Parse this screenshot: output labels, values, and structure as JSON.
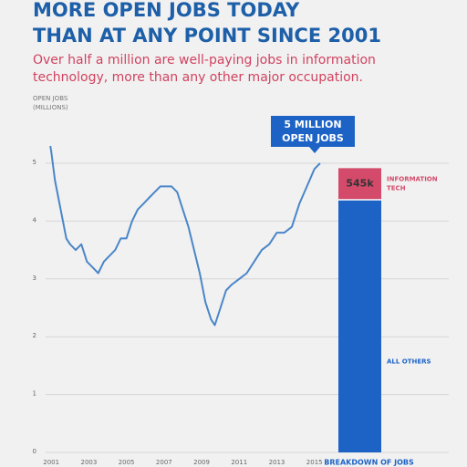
{
  "chart_data": {
    "type": "line",
    "title": [
      "MORE OPEN JOBS TODAY",
      "THAN AT ANY POINT SINCE 2001"
    ],
    "subtitle": [
      "Over half a million are well-paying jobs in information",
      "technology, more than any other major occupation."
    ],
    "y_label": [
      "OPEN JOBS",
      "(MILLIONS)"
    ],
    "annotation": [
      "5 MILLION",
      "OPEN JOBS"
    ],
    "x": [
      2000.95,
      2001.0,
      2001.2,
      2001.5,
      2001.8,
      2002.0,
      2002.3,
      2002.6,
      2002.9,
      2003.2,
      2003.5,
      2003.8,
      2004.1,
      2004.4,
      2004.7,
      2005.0,
      2005.3,
      2005.6,
      2005.9,
      2006.2,
      2006.5,
      2006.8,
      2007.1,
      2007.4,
      2007.7,
      2008.0,
      2008.3,
      2008.6,
      2008.9,
      2009.2,
      2009.5,
      2009.7,
      2010.0,
      2010.3,
      2010.6,
      2011.0,
      2011.4,
      2011.8,
      2012.2,
      2012.6,
      2013.0,
      2013.4,
      2013.8,
      2014.2,
      2014.6,
      2015.0,
      2015.3
    ],
    "series": [
      {
        "name": "Open jobs",
        "color": "#4a86c8",
        "values": [
          5.3,
          5.2,
          4.7,
          4.2,
          3.7,
          3.6,
          3.5,
          3.6,
          3.3,
          3.2,
          3.1,
          3.3,
          3.4,
          3.5,
          3.7,
          3.7,
          4.0,
          4.2,
          4.3,
          4.4,
          4.5,
          4.6,
          4.6,
          4.6,
          4.5,
          4.2,
          3.9,
          3.5,
          3.1,
          2.6,
          2.3,
          2.2,
          2.5,
          2.8,
          2.9,
          3.0,
          3.1,
          3.3,
          3.5,
          3.6,
          3.8,
          3.8,
          3.9,
          4.3,
          4.6,
          4.9,
          5.0
        ]
      }
    ],
    "xlim": [
      2000.7,
      2015.5
    ],
    "xticks": [
      2001,
      2003,
      2005,
      2007,
      2009,
      2011,
      2013,
      2015
    ],
    "ylim": [
      0,
      5.2
    ],
    "yticks": [
      0,
      1,
      2,
      3,
      4,
      5
    ],
    "grid": true,
    "breakdown": {
      "label": "BREAKDOWN OF JOBS",
      "series": [
        {
          "name": "ALL OTHERS",
          "color": "#1d63c6",
          "values": [
            4.37
          ]
        },
        {
          "name": "INFORMATION TECH",
          "color": "#d34a6a",
          "values": [
            0.545
          ],
          "value_labels": [
            "545k"
          ]
        }
      ]
    }
  }
}
